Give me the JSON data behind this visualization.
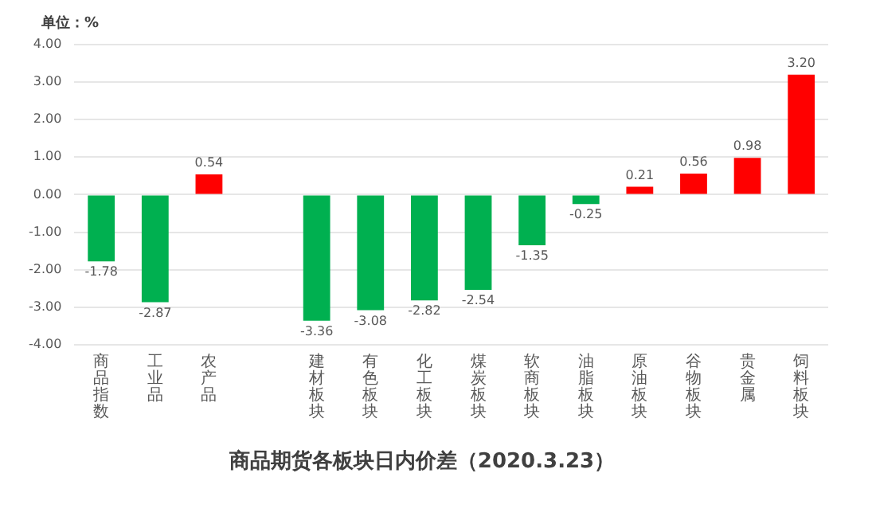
{
  "chart_data": {
    "type": "bar",
    "title": "商品期货各板块日内价差（2020.3.23）",
    "ylabel": "单位：%",
    "categories": [
      "商品指数",
      "工业品",
      "农产品",
      null,
      "建材板块",
      "有色板块",
      "化工板块",
      "煤炭板块",
      "软商板块",
      "油脂板块",
      "原油板块",
      "谷物板块",
      "贵金属",
      "饲料板块"
    ],
    "values": [
      -1.78,
      -2.87,
      0.54,
      null,
      -3.36,
      -3.08,
      -2.82,
      -2.54,
      -1.35,
      -0.25,
      0.21,
      0.56,
      0.98,
      3.2
    ],
    "value_labels": [
      "-1.78",
      "-2.87",
      "0.54",
      null,
      "-3.36",
      "-3.08",
      "-2.82",
      "-2.54",
      "-1.35",
      "-0.25",
      "0.21",
      "0.56",
      "0.98",
      "3.20"
    ],
    "colors": [
      "#00b050",
      "#00b050",
      "#ff0000",
      null,
      "#00b050",
      "#00b050",
      "#00b050",
      "#00b050",
      "#00b050",
      "#00b050",
      "#ff0000",
      "#ff0000",
      "#ff0000",
      "#ff0000"
    ],
    "ylim": [
      -4,
      4
    ],
    "yticks": [
      {
        "value": -4,
        "label": "-4.00"
      },
      {
        "value": -3,
        "label": "-3.00"
      },
      {
        "value": -2,
        "label": "-2.00"
      },
      {
        "value": -1,
        "label": "-1.00"
      },
      {
        "value": 0,
        "label": "0.00"
      },
      {
        "value": 1,
        "label": "1.00"
      },
      {
        "value": 2,
        "label": "2.00"
      },
      {
        "value": 3,
        "label": "3.00"
      },
      {
        "value": 4,
        "label": "4.00"
      }
    ],
    "grid": "y",
    "legend": false
  }
}
